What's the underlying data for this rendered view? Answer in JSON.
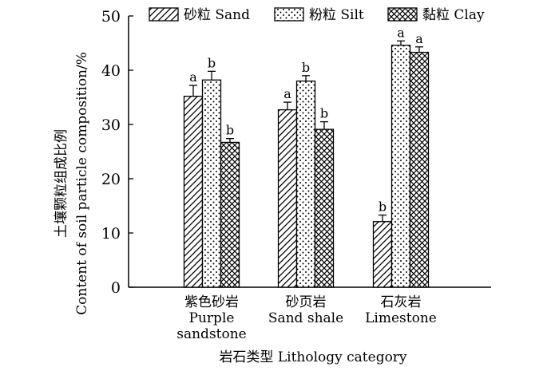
{
  "chart_data": {
    "type": "bar",
    "title": "",
    "ylabel_cn": "土壤颗粒组成比例",
    "ylabel_en": "Content of soil particle composition/%",
    "xlabel": "岩石类型 Lithology category",
    "ylim": [
      0,
      50
    ],
    "yticks": [
      0,
      10,
      20,
      30,
      40,
      50
    ],
    "categories": [
      {
        "cn": "紫色砂岩",
        "en_lines": [
          "Purple",
          "sandstone"
        ]
      },
      {
        "cn": "砂页岩",
        "en_lines": [
          "Sand shale"
        ]
      },
      {
        "cn": "石灰岩",
        "en_lines": [
          "Limestone"
        ]
      }
    ],
    "legend_position": "top",
    "series": [
      {
        "name": "砂粒 Sand",
        "pattern": "hatch",
        "values": [
          35.2,
          32.7,
          12.1
        ],
        "errors": [
          2.0,
          1.4,
          1.2
        ],
        "labels": [
          "a",
          "a",
          "b"
        ]
      },
      {
        "name": "粉粒 Silt",
        "pattern": "dots",
        "values": [
          38.2,
          38.0,
          44.6
        ],
        "errors": [
          1.6,
          1.0,
          0.8
        ],
        "labels": [
          "b",
          "b",
          "a"
        ]
      },
      {
        "name": "黏粒 Clay",
        "pattern": "cross",
        "values": [
          26.7,
          29.1,
          43.3
        ],
        "errors": [
          0.7,
          1.4,
          1.0
        ],
        "labels": [
          "b",
          "b",
          "a"
        ]
      }
    ]
  }
}
